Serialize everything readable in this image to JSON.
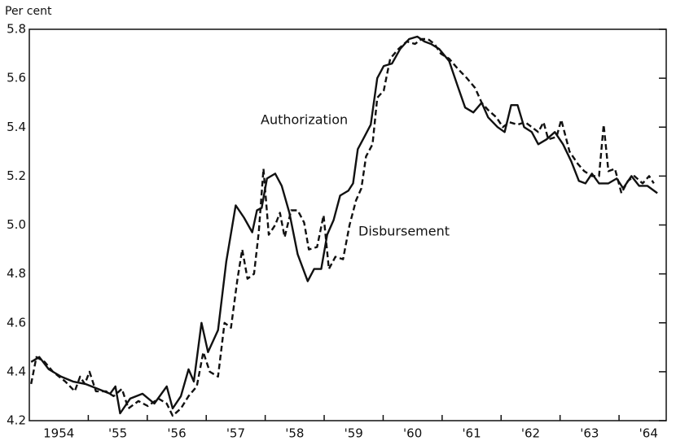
{
  "chart_data": {
    "type": "line",
    "ylabel": "Per cent",
    "xlim": [
      1954,
      1964.8
    ],
    "ylim": [
      4.2,
      5.8
    ],
    "yticks": [
      4.2,
      4.4,
      4.6,
      4.8,
      {
        "value": 5,
        "label": "5.0"
      },
      5.2,
      5.4,
      5.6,
      5.8
    ],
    "xticks": [
      {
        "value": 1954.5,
        "label": "1954"
      },
      {
        "value": 1955.5,
        "label": "'55"
      },
      {
        "value": 1956.5,
        "label": "'56"
      },
      {
        "value": 1957.5,
        "label": "'57"
      },
      {
        "value": 1958.5,
        "label": "'58"
      },
      {
        "value": 1959.5,
        "label": "'59"
      },
      {
        "value": 1960.5,
        "label": "'60"
      },
      {
        "value": 1961.5,
        "label": "'61"
      },
      {
        "value": 1962.5,
        "label": "'62"
      },
      {
        "value": 1963.5,
        "label": "'63"
      },
      {
        "value": 1964.5,
        "label": "'64"
      }
    ],
    "xticks_minor": [
      1955,
      1956,
      1957,
      1958,
      1959,
      1960,
      1961,
      1962,
      1963,
      1964
    ],
    "series": [
      {
        "name": "Authorization",
        "color": "#111111",
        "dash": false,
        "x": [
          1954.03,
          1954.17,
          1954.33,
          1954.54,
          1954.74,
          1954.95,
          1955.16,
          1955.37,
          1955.46,
          1955.54,
          1955.71,
          1955.92,
          1956.12,
          1956.33,
          1956.43,
          1956.57,
          1956.7,
          1956.79,
          1956.92,
          1957.03,
          1957.2,
          1957.34,
          1957.5,
          1957.64,
          1957.78,
          1957.86,
          1957.94,
          1958.03,
          1958.17,
          1958.28,
          1958.41,
          1958.55,
          1958.72,
          1958.83,
          1958.95,
          1959.05,
          1959.16,
          1959.27,
          1959.41,
          1959.49,
          1959.57,
          1959.68,
          1959.79,
          1959.9,
          1960.01,
          1960.15,
          1960.29,
          1960.44,
          1960.58,
          1960.7,
          1960.81,
          1960.95,
          1961.12,
          1961.26,
          1961.39,
          1961.53,
          1961.67,
          1961.78,
          1961.94,
          1962.06,
          1962.17,
          1962.28,
          1962.39,
          1962.52,
          1962.63,
          1962.77,
          1962.91,
          1963.05,
          1963.19,
          1963.32,
          1963.43,
          1963.54,
          1963.66,
          1963.82,
          1963.96,
          1964.07,
          1964.21,
          1964.34,
          1964.48,
          1964.65
        ],
        "values": [
          4.44,
          4.46,
          4.41,
          4.38,
          4.36,
          4.35,
          4.33,
          4.31,
          4.34,
          4.23,
          4.29,
          4.31,
          4.27,
          4.34,
          4.25,
          4.3,
          4.41,
          4.36,
          4.6,
          4.48,
          4.57,
          4.85,
          5.08,
          5.03,
          4.97,
          5.06,
          5.07,
          5.19,
          5.21,
          5.16,
          5.05,
          4.88,
          4.77,
          4.82,
          4.82,
          4.96,
          5.02,
          5.12,
          5.14,
          5.17,
          5.31,
          5.36,
          5.41,
          5.6,
          5.65,
          5.66,
          5.72,
          5.76,
          5.77,
          5.75,
          5.74,
          5.72,
          5.67,
          5.57,
          5.48,
          5.46,
          5.5,
          5.44,
          5.4,
          5.38,
          5.49,
          5.49,
          5.4,
          5.38,
          5.33,
          5.35,
          5.38,
          5.33,
          5.26,
          5.18,
          5.17,
          5.21,
          5.17,
          5.17,
          5.19,
          5.15,
          5.2,
          5.16,
          5.16,
          5.13
        ]
      },
      {
        "name": "Disbursement",
        "color": "#111111",
        "dash": true,
        "x": [
          1954.03,
          1954.12,
          1954.26,
          1954.4,
          1954.61,
          1954.77,
          1954.86,
          1954.94,
          1955.02,
          1955.13,
          1955.3,
          1955.43,
          1955.57,
          1955.68,
          1955.85,
          1956.01,
          1956.19,
          1956.33,
          1956.43,
          1956.57,
          1956.7,
          1956.84,
          1956.95,
          1957.06,
          1957.2,
          1957.31,
          1957.42,
          1957.53,
          1957.61,
          1957.7,
          1957.81,
          1957.89,
          1957.97,
          1958.06,
          1958.17,
          1958.25,
          1958.33,
          1958.44,
          1958.55,
          1958.66,
          1958.74,
          1958.88,
          1958.99,
          1959.08,
          1959.19,
          1959.32,
          1959.43,
          1959.54,
          1959.63,
          1959.71,
          1959.82,
          1959.9,
          1960.01,
          1960.12,
          1960.26,
          1960.4,
          1960.54,
          1960.65,
          1960.76,
          1960.87,
          1960.98,
          1961.12,
          1961.26,
          1961.42,
          1961.56,
          1961.67,
          1961.78,
          1961.92,
          1962.03,
          1962.14,
          1962.28,
          1962.41,
          1962.52,
          1962.63,
          1962.72,
          1962.8,
          1962.94,
          1963.02,
          1963.16,
          1963.3,
          1963.41,
          1963.54,
          1963.66,
          1963.74,
          1963.82,
          1963.93,
          1964.04,
          1964.15,
          1964.26,
          1964.4,
          1964.51,
          1964.59
        ],
        "values": [
          4.35,
          4.46,
          4.44,
          4.4,
          4.36,
          4.32,
          4.38,
          4.35,
          4.4,
          4.32,
          4.32,
          4.3,
          4.33,
          4.25,
          4.28,
          4.26,
          4.29,
          4.27,
          4.22,
          4.25,
          4.3,
          4.34,
          4.48,
          4.4,
          4.38,
          4.6,
          4.58,
          4.78,
          4.9,
          4.78,
          4.8,
          4.97,
          5.23,
          4.96,
          5.0,
          5.05,
          4.95,
          5.06,
          5.06,
          5.01,
          4.9,
          4.91,
          5.04,
          4.82,
          4.87,
          4.86,
          5.0,
          5.1,
          5.15,
          5.28,
          5.33,
          5.52,
          5.55,
          5.68,
          5.72,
          5.75,
          5.74,
          5.76,
          5.76,
          5.74,
          5.7,
          5.68,
          5.64,
          5.6,
          5.56,
          5.5,
          5.47,
          5.44,
          5.4,
          5.42,
          5.41,
          5.42,
          5.4,
          5.38,
          5.42,
          5.35,
          5.36,
          5.43,
          5.3,
          5.25,
          5.22,
          5.2,
          5.2,
          5.41,
          5.22,
          5.23,
          5.13,
          5.18,
          5.2,
          5.17,
          5.2,
          5.17
        ]
      }
    ]
  }
}
